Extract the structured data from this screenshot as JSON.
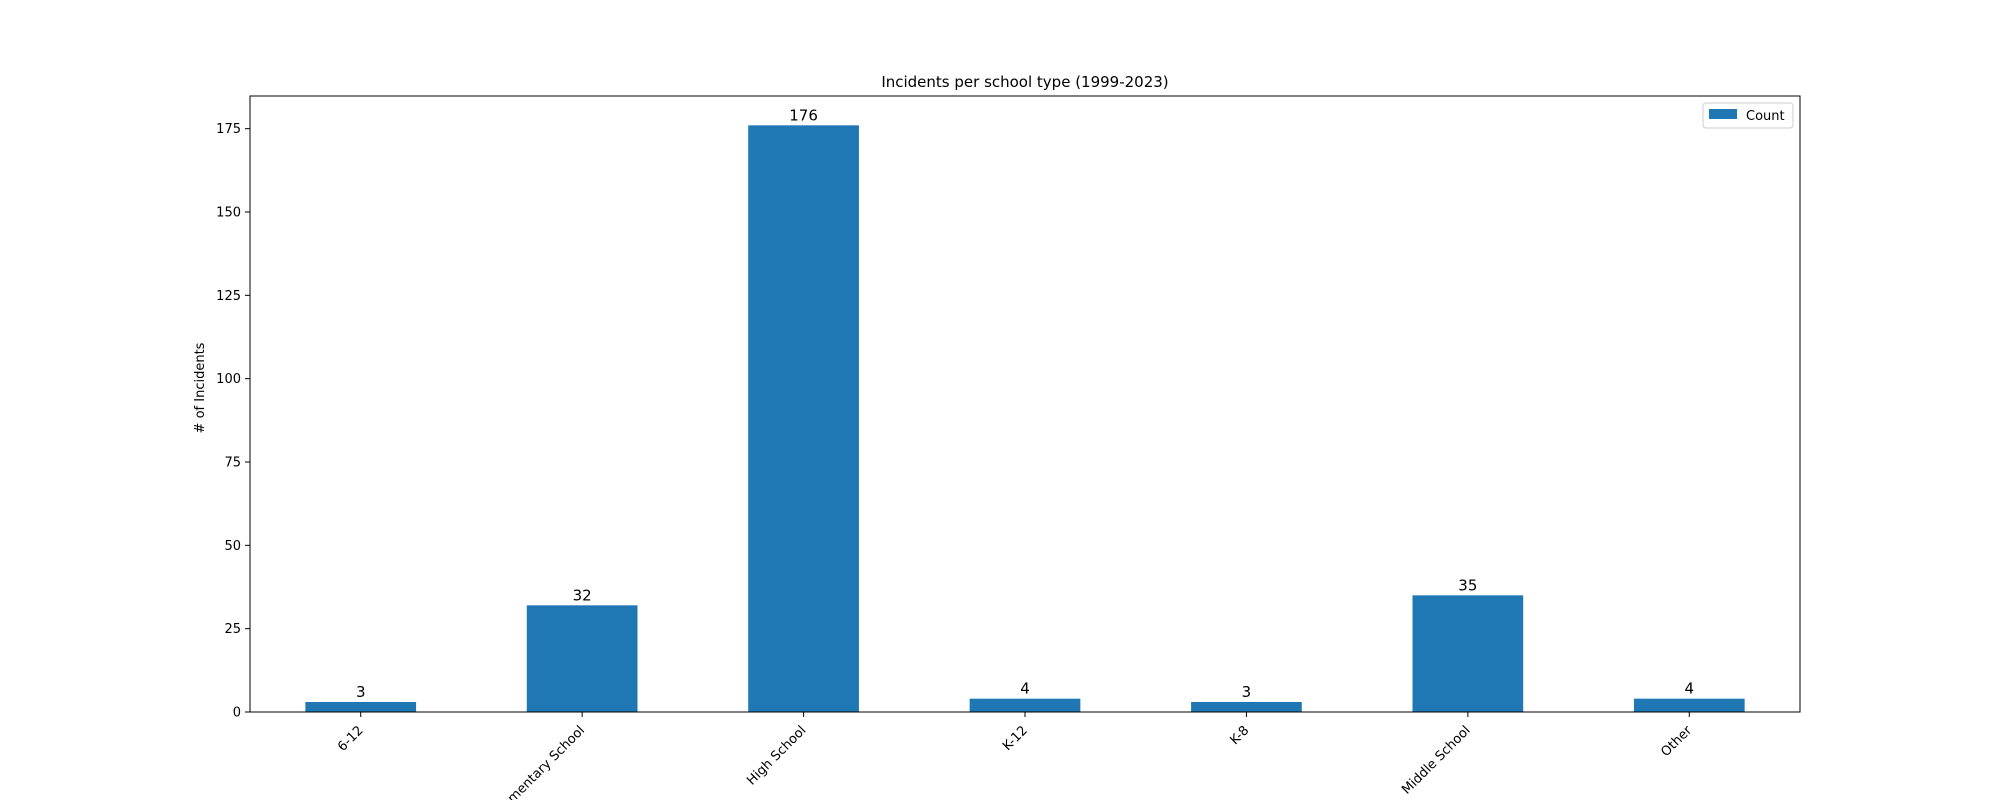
{
  "chart_data": {
    "type": "bar",
    "title": "Incidents per school type (1999-2023)",
    "xlabel": "",
    "ylabel": "# of Incidents",
    "categories": [
      "6-12",
      "Elementary School",
      "High School",
      "K-12",
      "K-8",
      "Middle School",
      "Other"
    ],
    "series": [
      {
        "name": "Count",
        "values": [
          3,
          32,
          176,
          4,
          3,
          35,
          4
        ]
      }
    ],
    "data_labels": [
      "3",
      "32",
      "176",
      "4",
      "3",
      "35",
      "4"
    ],
    "ylim": [
      0,
      184.8
    ],
    "yticks": [
      0,
      25,
      50,
      75,
      100,
      125,
      150,
      175
    ],
    "grid": false,
    "legend": "top-right",
    "bar_color": "#1f77b4"
  }
}
